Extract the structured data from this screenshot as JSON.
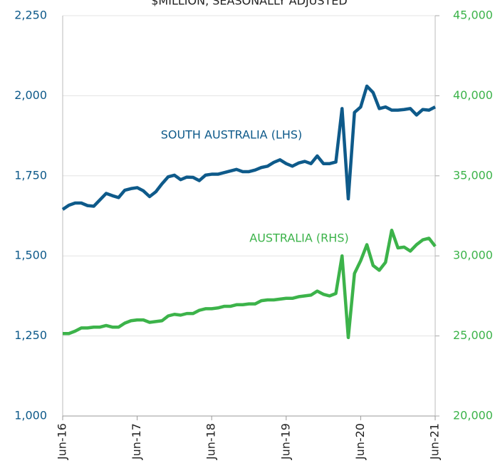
{
  "chart_data": {
    "type": "line",
    "title": "$MILLION, SEASONALLY ADJUSTED",
    "categories": [
      "Jun-16",
      null,
      null,
      null,
      null,
      null,
      null,
      null,
      null,
      null,
      null,
      null,
      "Jun-17",
      null,
      null,
      null,
      null,
      null,
      null,
      null,
      null,
      null,
      null,
      null,
      "Jun-18",
      null,
      null,
      null,
      null,
      null,
      null,
      null,
      null,
      null,
      null,
      null,
      "Jun-19",
      null,
      null,
      null,
      null,
      null,
      null,
      null,
      null,
      null,
      null,
      null,
      "Jun-20",
      null,
      null,
      null,
      null,
      null,
      null,
      null,
      null,
      null,
      null,
      null,
      "Jun-21"
    ],
    "series": [
      {
        "name": "SOUTH AUSTRALIA (LHS)",
        "color": "#0e5a8a",
        "axis": "y",
        "values": [
          1645,
          1658,
          1665,
          1665,
          1657,
          1655,
          1675,
          1695,
          1688,
          1682,
          1705,
          1710,
          1713,
          1703,
          1685,
          1700,
          1725,
          1747,
          1752,
          1738,
          1746,
          1745,
          1735,
          1752,
          1755,
          1755,
          1760,
          1765,
          1770,
          1763,
          1763,
          1768,
          1776,
          1780,
          1792,
          1800,
          1788,
          1780,
          1790,
          1795,
          1788,
          1812,
          1788,
          1788,
          1793,
          1960,
          1678,
          1948,
          1965,
          2030,
          2010,
          1960,
          1965,
          1955,
          1955,
          1957,
          1960,
          1940,
          1957,
          1955,
          1965
        ]
      },
      {
        "name": "AUSTRALIA (RHS)",
        "color": "#3cb34a",
        "axis": "y2",
        "values": [
          25150,
          25150,
          25300,
          25500,
          25500,
          25550,
          25550,
          25650,
          25550,
          25550,
          25800,
          25950,
          26000,
          26000,
          25850,
          25900,
          25950,
          26250,
          26350,
          26300,
          26400,
          26400,
          26600,
          26700,
          26700,
          26750,
          26850,
          26850,
          26950,
          26950,
          27000,
          27000,
          27200,
          27250,
          27250,
          27300,
          27350,
          27350,
          27450,
          27500,
          27550,
          27800,
          27600,
          27500,
          27650,
          30000,
          24900,
          28900,
          29700,
          30700,
          29400,
          29100,
          29600,
          31600,
          30500,
          30550,
          30300,
          30700,
          31000,
          31100,
          30600
        ]
      }
    ],
    "ylim": [
      1000,
      2250
    ],
    "yticks": [
      {
        "value": 1000,
        "label": "1,000"
      },
      {
        "value": 1250,
        "label": "1,250"
      },
      {
        "value": 1500,
        "label": "1,500"
      },
      {
        "value": 1750,
        "label": "1,750"
      },
      {
        "value": 2000,
        "label": "2,000"
      },
      {
        "value": 2250,
        "label": "2,250"
      }
    ],
    "y2lim": [
      20000,
      45000
    ],
    "y2ticks": [
      {
        "value": 20000,
        "label": "20,000"
      },
      {
        "value": 25000,
        "label": "25,000"
      },
      {
        "value": 30000,
        "label": "30,000"
      },
      {
        "value": 35000,
        "label": "35,000"
      },
      {
        "value": 40000,
        "label": "40,000"
      },
      {
        "value": 45000,
        "label": "45,000"
      }
    ],
    "grid": true
  }
}
